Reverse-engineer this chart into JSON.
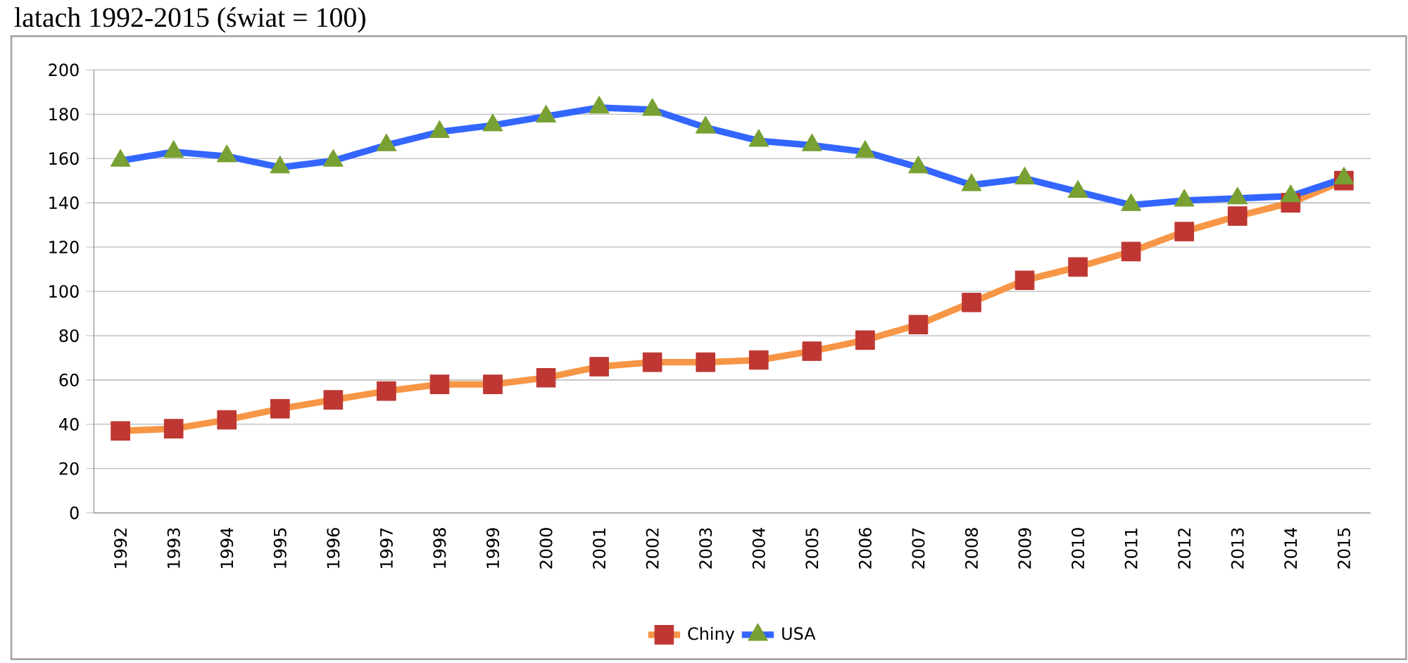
{
  "chart_data": {
    "type": "line",
    "title": "latach 1992-2015 (świat = 100)",
    "categories": [
      "1992",
      "1993",
      "1994",
      "1995",
      "1996",
      "1997",
      "1998",
      "1999",
      "2000",
      "2001",
      "2002",
      "2003",
      "2004",
      "2005",
      "2006",
      "2007",
      "2008",
      "2009",
      "2010",
      "2011",
      "2012",
      "2013",
      "2014",
      "2015"
    ],
    "series": [
      {
        "name": "Chiny",
        "color": "#f79646",
        "marker": "square",
        "values": [
          37,
          38,
          42,
          47,
          51,
          55,
          58,
          58,
          61,
          66,
          68,
          68,
          69,
          73,
          78,
          85,
          95,
          105,
          111,
          118,
          127,
          134,
          140,
          150
        ]
      },
      {
        "name": "USA",
        "color": "#3366ff",
        "marker": "triangle",
        "values": [
          159,
          163,
          161,
          156,
          159,
          166,
          172,
          175,
          179,
          183,
          182,
          174,
          168,
          166,
          163,
          156,
          148,
          151,
          145,
          139,
          141,
          142,
          143,
          151
        ]
      }
    ],
    "ylim": [
      0,
      200
    ],
    "yticks": [
      0,
      20,
      40,
      60,
      80,
      100,
      120,
      140,
      160,
      180,
      200
    ],
    "grid": "y",
    "legend": "bottom"
  }
}
